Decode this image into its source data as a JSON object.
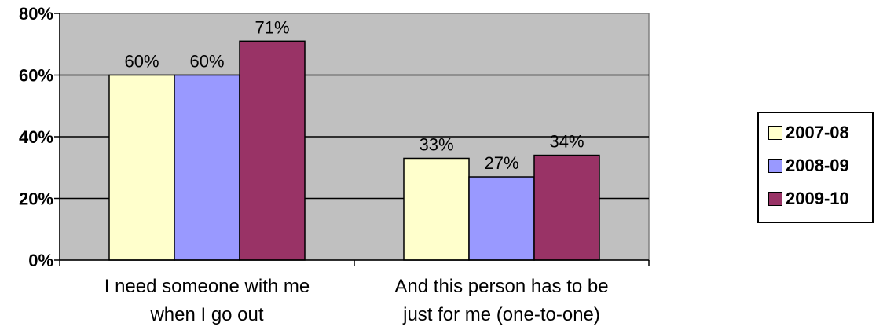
{
  "chart_data": {
    "type": "bar",
    "categories": [
      [
        "I need someone with me",
        "when I go out"
      ],
      [
        "And this person has to be",
        "just for me (one-to-one)"
      ]
    ],
    "series": [
      {
        "name": "2007-08",
        "values": [
          60,
          33
        ],
        "labels": [
          "60%",
          "33%"
        ],
        "color": "#FFFFCC"
      },
      {
        "name": "2008-09",
        "values": [
          60,
          27
        ],
        "labels": [
          "60%",
          "27%"
        ],
        "color": "#9999FF"
      },
      {
        "name": "2009-10",
        "values": [
          71,
          34
        ],
        "labels": [
          "71%",
          "34%"
        ],
        "color": "#993366"
      }
    ],
    "yticks": [
      {
        "value": 0,
        "label": "0%"
      },
      {
        "value": 20,
        "label": "20%"
      },
      {
        "value": 40,
        "label": "40%"
      },
      {
        "value": 60,
        "label": "60%"
      },
      {
        "value": 80,
        "label": "80%"
      }
    ],
    "ylim": [
      0,
      80
    ],
    "grid": true,
    "legend_position": "right",
    "plot_background": "#C0C0C0"
  }
}
